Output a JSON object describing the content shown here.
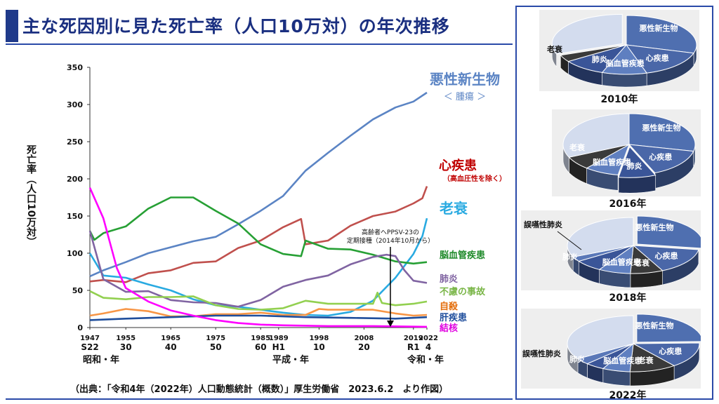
{
  "title": "主な死因別に見た死亡率（人口10万対）の年次推移",
  "ylabel": "死亡率（人口10万対）",
  "source": "（出典：「令和4年（2022年）人口動態統計（概数）」厚生労働省　2023.6.2　より作図）",
  "eras": [
    "昭和・年",
    "平成・年",
    "令和・年"
  ],
  "annotation": [
    "高齢者へPPSV-23の",
    "定期接種（2014年10月から）"
  ],
  "colors": {
    "cancer": "#5b84c4",
    "heart": "#c0504d",
    "senility": "#29aae1",
    "stroke": "#27a035",
    "pneumonia": "#8064a2",
    "accident": "#92d050",
    "suicide": "#f79646",
    "liver": "#1f4e9c",
    "tb": "#ff00ff"
  },
  "series_labels": {
    "cancer": "悪性新生物",
    "cancer_sub": "＜ 腫瘍 ＞",
    "heart": "心疾患",
    "heart_sub": "（高血圧性を除く）",
    "senility": "老衰",
    "stroke": "脳血管疾患",
    "pneumonia": "肺炎",
    "accident": "不慮の事故",
    "suicide": "自殺",
    "liver": "肝疾患",
    "tb": "結核"
  },
  "chart_data": [
    {
      "type": "line",
      "ylim": [
        0,
        350
      ],
      "yticks": [
        0,
        50,
        100,
        150,
        200,
        250,
        300,
        350
      ],
      "xlim": [
        1947,
        2022
      ],
      "xticks": [
        {
          "x": 1947,
          "top": "1947",
          "bottom": "S22"
        },
        {
          "x": 1955,
          "top": "1955",
          "bottom": "30"
        },
        {
          "x": 1965,
          "top": "1965",
          "bottom": "40"
        },
        {
          "x": 1975,
          "top": "1975",
          "bottom": "50"
        },
        {
          "x": 1985,
          "top": "1985",
          "bottom": "60"
        },
        {
          "x": 1989,
          "top": "1989",
          "bottom": "H1"
        },
        {
          "x": 1998,
          "top": "1998",
          "bottom": "10"
        },
        {
          "x": 2008,
          "top": "2008",
          "bottom": "20"
        },
        {
          "x": 2019,
          "top": "2019",
          "bottom": "R1"
        },
        {
          "x": 2022,
          "top": "2022",
          "bottom": "4"
        }
      ],
      "series": [
        {
          "name": "悪性新生物",
          "key": "cancer",
          "points": [
            [
              1947,
              69
            ],
            [
              1950,
              77
            ],
            [
              1955,
              88
            ],
            [
              1960,
              100
            ],
            [
              1965,
              108
            ],
            [
              1970,
              116
            ],
            [
              1975,
              122
            ],
            [
              1980,
              139
            ],
            [
              1985,
              157
            ],
            [
              1990,
              177
            ],
            [
              1995,
              211
            ],
            [
              2000,
              235
            ],
            [
              2005,
              258
            ],
            [
              2010,
              280
            ],
            [
              2015,
              296
            ],
            [
              2019,
              304
            ],
            [
              2022,
              316
            ]
          ]
        },
        {
          "name": "心疾患",
          "key": "heart",
          "points": [
            [
              1947,
              62
            ],
            [
              1950,
              64
            ],
            [
              1955,
              61
            ],
            [
              1960,
              73
            ],
            [
              1965,
              77
            ],
            [
              1970,
              87
            ],
            [
              1975,
              89
            ],
            [
              1980,
              107
            ],
            [
              1985,
              117
            ],
            [
              1990,
              135
            ],
            [
              1994,
              146
            ],
            [
              1995,
              112
            ],
            [
              2000,
              117
            ],
            [
              2005,
              137
            ],
            [
              2010,
              150
            ],
            [
              2015,
              156
            ],
            [
              2019,
              167
            ],
            [
              2021,
              174
            ],
            [
              2022,
              190
            ]
          ]
        },
        {
          "name": "老衰",
          "key": "senility",
          "points": [
            [
              1947,
              100
            ],
            [
              1950,
              70
            ],
            [
              1955,
              67
            ],
            [
              1960,
              58
            ],
            [
              1965,
              50
            ],
            [
              1970,
              38
            ],
            [
              1975,
              30
            ],
            [
              1980,
              28
            ],
            [
              1985,
              24
            ],
            [
              1990,
              20
            ],
            [
              1995,
              17
            ],
            [
              2000,
              16
            ],
            [
              2005,
              21
            ],
            [
              2010,
              36
            ],
            [
              2015,
              67
            ],
            [
              2019,
              99
            ],
            [
              2021,
              123
            ],
            [
              2022,
              147
            ]
          ]
        },
        {
          "name": "脳血管疾患",
          "key": "stroke",
          "points": [
            [
              1947,
              130
            ],
            [
              1948,
              118
            ],
            [
              1950,
              127
            ],
            [
              1955,
              136
            ],
            [
              1960,
              160
            ],
            [
              1965,
              175
            ],
            [
              1970,
              175
            ],
            [
              1975,
              157
            ],
            [
              1980,
              140
            ],
            [
              1985,
              112
            ],
            [
              1990,
              99
            ],
            [
              1994,
              96
            ],
            [
              1995,
              117
            ],
            [
              2000,
              106
            ],
            [
              2005,
              105
            ],
            [
              2010,
              98
            ],
            [
              2015,
              89
            ],
            [
              2019,
              86
            ],
            [
              2022,
              88
            ]
          ]
        },
        {
          "name": "肺炎",
          "key": "pneumonia",
          "points": [
            [
              1947,
              130
            ],
            [
              1950,
              65
            ],
            [
              1955,
              48
            ],
            [
              1960,
              49
            ],
            [
              1965,
              37
            ],
            [
              1970,
              34
            ],
            [
              1975,
              33
            ],
            [
              1980,
              28
            ],
            [
              1985,
              37
            ],
            [
              1990,
              55
            ],
            [
              1995,
              64
            ],
            [
              2000,
              70
            ],
            [
              2005,
              85
            ],
            [
              2010,
              95
            ],
            [
              2013,
              98
            ],
            [
              2015,
              96
            ],
            [
              2017,
              77
            ],
            [
              2019,
              63
            ],
            [
              2022,
              60
            ]
          ]
        },
        {
          "name": "不慮の事故",
          "key": "accident",
          "points": [
            [
              1947,
              49
            ],
            [
              1950,
              40
            ],
            [
              1955,
              38
            ],
            [
              1960,
              41
            ],
            [
              1965,
              41
            ],
            [
              1970,
              42
            ],
            [
              1975,
              30
            ],
            [
              1980,
              25
            ],
            [
              1985,
              24
            ],
            [
              1990,
              26
            ],
            [
              1995,
              36
            ],
            [
              2000,
              32
            ],
            [
              2005,
              32
            ],
            [
              2010,
              32
            ],
            [
              2011,
              47
            ],
            [
              2012,
              33
            ],
            [
              2015,
              30
            ],
            [
              2019,
              32
            ],
            [
              2022,
              35
            ]
          ]
        },
        {
          "name": "自殺",
          "key": "suicide",
          "points": [
            [
              1947,
              16
            ],
            [
              1950,
              19
            ],
            [
              1955,
              25
            ],
            [
              1960,
              22
            ],
            [
              1965,
              15
            ],
            [
              1970,
              15
            ],
            [
              1975,
              18
            ],
            [
              1980,
              18
            ],
            [
              1985,
              20
            ],
            [
              1990,
              17
            ],
            [
              1995,
              17
            ],
            [
              1998,
              25
            ],
            [
              2000,
              24
            ],
            [
              2005,
              24
            ],
            [
              2010,
              24
            ],
            [
              2015,
              19
            ],
            [
              2019,
              16
            ],
            [
              2022,
              17
            ]
          ]
        },
        {
          "name": "肝疾患",
          "key": "liver",
          "points": [
            [
              1947,
              10
            ],
            [
              1955,
              12
            ],
            [
              1965,
              14
            ],
            [
              1975,
              16
            ],
            [
              1985,
              16
            ],
            [
              1995,
              14
            ],
            [
              2005,
              13
            ],
            [
              2015,
              12
            ],
            [
              2022,
              14
            ]
          ]
        },
        {
          "name": "結核",
          "key": "tb",
          "points": [
            [
              1947,
              188
            ],
            [
              1950,
              147
            ],
            [
              1953,
              80
            ],
            [
              1955,
              53
            ],
            [
              1960,
              35
            ],
            [
              1965,
              23
            ],
            [
              1970,
              16
            ],
            [
              1975,
              10
            ],
            [
              1980,
              6
            ],
            [
              1985,
              4
            ],
            [
              1990,
              3
            ],
            [
              2000,
              2
            ],
            [
              2010,
              2
            ],
            [
              2022,
              1
            ]
          ]
        }
      ]
    },
    {
      "type": "pie",
      "title": "2010年",
      "slices": [
        {
          "label": "悪性新生物",
          "value": 29.5
        },
        {
          "label": "心疾患",
          "value": 15.8
        },
        {
          "label": "脳血管疾患",
          "value": 10.3
        },
        {
          "label": "肺炎",
          "value": 9.9
        },
        {
          "label": "老衰",
          "value": 3.8
        },
        {
          "label": "",
          "value": 30.7
        }
      ]
    },
    {
      "type": "pie",
      "title": "2016年",
      "slices": [
        {
          "label": "悪性新生物",
          "value": 28.5
        },
        {
          "label": "心疾患",
          "value": 15.1
        },
        {
          "label": "肺炎",
          "value": 9.1
        },
        {
          "label": "脳血管疾患",
          "value": 8.4
        },
        {
          "label": "老衰",
          "value": 7.1
        },
        {
          "label": "",
          "value": 31.8
        }
      ]
    },
    {
      "type": "pie",
      "title": "2018年",
      "slices": [
        {
          "label": "悪性新生物",
          "value": 27.4
        },
        {
          "label": "心疾患",
          "value": 15.3
        },
        {
          "label": "老衰",
          "value": 8.0
        },
        {
          "label": "脳血管疾患",
          "value": 7.9
        },
        {
          "label": "肺炎",
          "value": 6.9
        },
        {
          "label": "誤嚥性肺炎",
          "value": 2.8
        },
        {
          "label": "",
          "value": 31.7
        }
      ]
    },
    {
      "type": "pie",
      "title": "2022年",
      "slices": [
        {
          "label": "悪性新生物",
          "value": 24.6
        },
        {
          "label": "心疾患",
          "value": 14.8
        },
        {
          "label": "老衰",
          "value": 11.4
        },
        {
          "label": "脳血管疾患",
          "value": 6.8
        },
        {
          "label": "肺炎",
          "value": 4.7
        },
        {
          "label": "誤嚥性肺炎",
          "value": 3.6
        },
        {
          "label": "",
          "value": 34.1
        }
      ]
    }
  ]
}
